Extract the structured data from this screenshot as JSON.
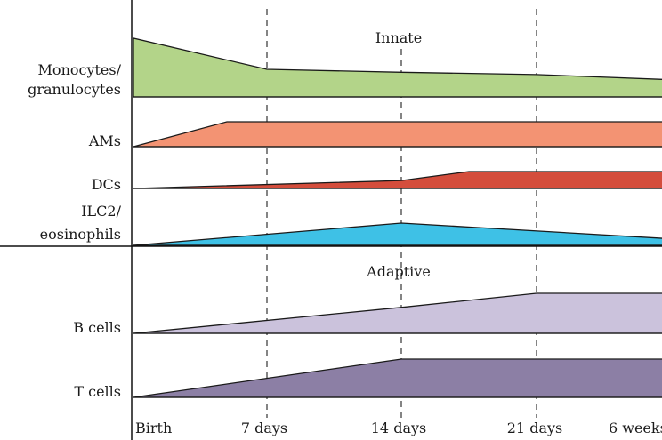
{
  "sections": {
    "innate": "Innate",
    "adaptive": "Adaptive"
  },
  "timepoints": [
    "Birth",
    "7 days",
    "14 days",
    "21 days",
    "6 weeks"
  ],
  "rows": [
    {
      "id": "monocytes",
      "label_lines": [
        "Monocytes/",
        "granulocytes"
      ],
      "color": "#b3d489",
      "profile": [
        [
          0,
          1.0
        ],
        [
          1,
          0.47
        ],
        [
          2,
          0.42
        ],
        [
          3,
          0.38
        ],
        [
          4,
          0.29
        ]
      ]
    },
    {
      "id": "ams",
      "label_lines": [
        "AMs"
      ],
      "color": "#f39373",
      "profile": [
        [
          0,
          0.0
        ],
        [
          0.7,
          1.0
        ],
        [
          4,
          1.0
        ]
      ]
    },
    {
      "id": "dcs",
      "label_lines": [
        "DCs"
      ],
      "color": "#d44d3c",
      "profile": [
        [
          0,
          0.0
        ],
        [
          2,
          0.47
        ],
        [
          2.5,
          1.0
        ],
        [
          4,
          1.0
        ]
      ]
    },
    {
      "id": "ilc2",
      "label_lines": [
        "ILC2/",
        "eosinophils"
      ],
      "color": "#3ec1e6",
      "profile": [
        [
          0,
          0.0
        ],
        [
          2,
          1.0
        ],
        [
          4,
          0.28
        ]
      ]
    },
    {
      "id": "bcells",
      "label_lines": [
        "B cells"
      ],
      "color": "#cbc2dc",
      "profile": [
        [
          0,
          0.0
        ],
        [
          2,
          0.65
        ],
        [
          3,
          1.0
        ],
        [
          4,
          1.0
        ]
      ]
    },
    {
      "id": "tcells",
      "label_lines": [
        "T cells"
      ],
      "color": "#8c7fa5",
      "profile": [
        [
          0,
          0.0
        ],
        [
          2,
          1.0
        ],
        [
          4,
          1.0
        ]
      ]
    }
  ]
}
